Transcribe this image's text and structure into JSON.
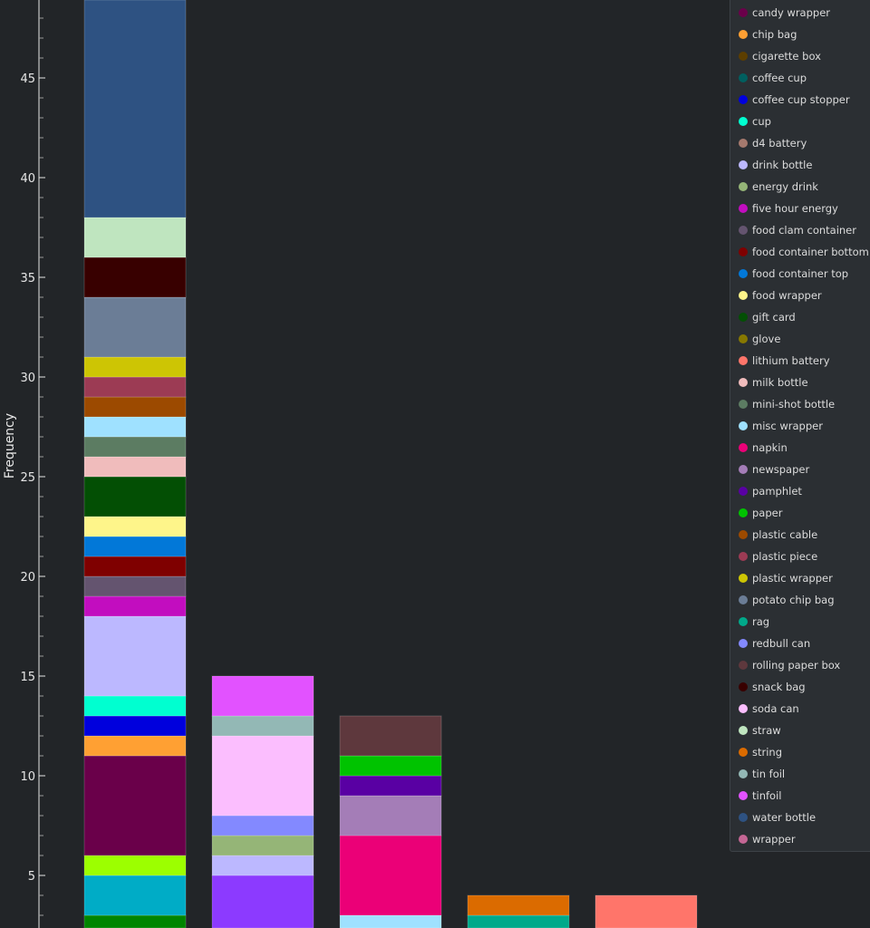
{
  "chart_data": {
    "type": "bar",
    "stacked": true,
    "title": "",
    "xlabel": "",
    "ylabel": "Frequency",
    "ylim": [
      2.36,
      48.9
    ],
    "yticks": [
      5,
      10,
      15,
      20,
      25,
      30,
      35,
      40,
      45
    ],
    "bar_count": 5,
    "series": [
      {
        "name": null,
        "color": "#008500",
        "values": [
          3,
          0,
          0,
          0,
          0
        ]
      },
      {
        "name": null,
        "color": "#00acc6",
        "values": [
          2,
          0,
          0,
          0,
          0
        ]
      },
      {
        "name": null,
        "color": "#9cff00",
        "values": [
          1,
          0,
          0,
          0,
          0
        ]
      },
      {
        "name": null,
        "color": "#8c3aff",
        "values": [
          0,
          5,
          0,
          0,
          0
        ]
      },
      {
        "name": "candy wrapper",
        "color": "#6a004a",
        "values": [
          5,
          0,
          0,
          0,
          0
        ]
      },
      {
        "name": "chip bag",
        "color": "#ffa033",
        "values": [
          1,
          0,
          0,
          0,
          0
        ]
      },
      {
        "name": "cigarette box",
        "color": "#5c3e00",
        "values": [
          0,
          0,
          0,
          0,
          0
        ]
      },
      {
        "name": "coffee cup",
        "color": "#005f5f",
        "values": [
          0,
          0,
          0,
          0,
          0
        ]
      },
      {
        "name": "coffee cup stopper",
        "color": "#0000dd",
        "values": [
          1,
          0,
          0,
          0,
          0
        ]
      },
      {
        "name": "cup",
        "color": "#00ffd0",
        "values": [
          1,
          0,
          0,
          0,
          0
        ]
      },
      {
        "name": "d4 battery",
        "color": "#a67a6e",
        "values": [
          0,
          0,
          0,
          0,
          0
        ]
      },
      {
        "name": "drink bottle",
        "color": "#bcb8ff",
        "values": [
          4,
          1,
          0,
          0,
          0
        ]
      },
      {
        "name": "energy drink",
        "color": "#95b577",
        "values": [
          0,
          1,
          0,
          0,
          0
        ]
      },
      {
        "name": "five hour energy",
        "color": "#c20dbf",
        "values": [
          1,
          0,
          0,
          0,
          0
        ]
      },
      {
        "name": "food clam container",
        "color": "#64546f",
        "values": [
          1,
          0,
          0,
          0,
          0
        ]
      },
      {
        "name": "food container bottom",
        "color": "#7f0000",
        "values": [
          1,
          0,
          0,
          0,
          0
        ]
      },
      {
        "name": "food container top",
        "color": "#0278d8",
        "values": [
          1,
          0,
          0,
          0,
          0
        ]
      },
      {
        "name": "food wrapper",
        "color": "#fef58a",
        "values": [
          1,
          0,
          0,
          0,
          0
        ]
      },
      {
        "name": "gift card",
        "color": "#034f04",
        "values": [
          2,
          0,
          0,
          0,
          0
        ]
      },
      {
        "name": "glove",
        "color": "#877800",
        "values": [
          0,
          0,
          0,
          0,
          0
        ]
      },
      {
        "name": "lithium battery",
        "color": "#ff756a",
        "values": [
          0,
          0,
          0,
          0,
          4
        ]
      },
      {
        "name": "milk bottle",
        "color": "#f0bcbc",
        "values": [
          1,
          0,
          0,
          0,
          0
        ]
      },
      {
        "name": "mini-shot bottle",
        "color": "#5c7c62",
        "values": [
          1,
          0,
          0,
          0,
          0
        ]
      },
      {
        "name": "misc wrapper",
        "color": "#9fe1ff",
        "values": [
          1,
          0,
          3,
          0,
          0
        ]
      },
      {
        "name": "napkin",
        "color": "#eb0077",
        "values": [
          0,
          0,
          4,
          0,
          0
        ]
      },
      {
        "name": "newspaper",
        "color": "#a47db7",
        "values": [
          0,
          0,
          2,
          0,
          0
        ]
      },
      {
        "name": "pamphlet",
        "color": "#5900a3",
        "values": [
          0,
          0,
          1,
          0,
          0
        ]
      },
      {
        "name": "paper",
        "color": "#00c300",
        "values": [
          0,
          0,
          1,
          0,
          0
        ]
      },
      {
        "name": "plastic cable",
        "color": "#9c4a00",
        "values": [
          1,
          0,
          0,
          0,
          0
        ]
      },
      {
        "name": "plastic piece",
        "color": "#9c3b54",
        "values": [
          1,
          0,
          0,
          0,
          0
        ]
      },
      {
        "name": "plastic wrapper",
        "color": "#cdc504",
        "values": [
          1,
          0,
          0,
          0,
          0
        ]
      },
      {
        "name": "potato chip bag",
        "color": "#6b7d96",
        "values": [
          3,
          0,
          0,
          0,
          0
        ]
      },
      {
        "name": "rag",
        "color": "#00a98a",
        "values": [
          0,
          0,
          0,
          3,
          0
        ]
      },
      {
        "name": "redbull can",
        "color": "#8389ff",
        "values": [
          0,
          1,
          0,
          0,
          0
        ]
      },
      {
        "name": "rolling paper box",
        "color": "#5e383d",
        "values": [
          0,
          0,
          2,
          0,
          0
        ]
      },
      {
        "name": "snack bag",
        "color": "#380000",
        "values": [
          2,
          0,
          0,
          0,
          0
        ]
      },
      {
        "name": "soda can",
        "color": "#fbbefe",
        "values": [
          0,
          4,
          0,
          0,
          0
        ]
      },
      {
        "name": "straw",
        "color": "#bfe5bf",
        "values": [
          2,
          0,
          0,
          0,
          0
        ]
      },
      {
        "name": "string",
        "color": "#db6b00",
        "values": [
          0,
          0,
          0,
          1,
          0
        ]
      },
      {
        "name": "tin foil",
        "color": "#93b8b5",
        "values": [
          0,
          1,
          0,
          0,
          0
        ]
      },
      {
        "name": "tinfoil",
        "color": "#e252ff",
        "values": [
          0,
          2,
          0,
          0,
          0
        ]
      },
      {
        "name": "water bottle",
        "color": "#2e5282",
        "values": [
          11,
          0,
          0,
          0,
          0
        ]
      },
      {
        "name": "wrapper",
        "color": "#c46694",
        "values": [
          0,
          0,
          0,
          0,
          0
        ]
      }
    ],
    "legend_position": "top-right",
    "grid": false
  }
}
